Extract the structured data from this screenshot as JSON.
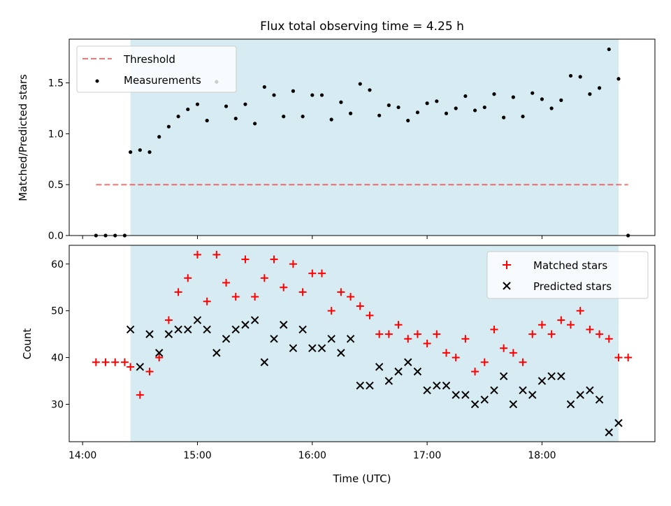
{
  "title": "Flux total observing time = 4.25 h",
  "xlabel": "Time (UTC)",
  "x_ticks": [
    "14:00",
    "15:00",
    "16:00",
    "17:00",
    "18:00"
  ],
  "colors": {
    "span": "#add8e6",
    "threshold": "#ff0000",
    "matched": "#ff0000",
    "predicted": "#000000",
    "measurements": "#000000"
  },
  "chart_data": [
    {
      "type": "scatter",
      "ylabel": "Matched/Predicted stars",
      "ylim": [
        0,
        1.93
      ],
      "y_ticks": [
        "0.0",
        "0.5",
        "1.0",
        "1.5"
      ],
      "shaded_span": [
        "14:25",
        "18:40"
      ],
      "legend": {
        "placement": "top-left",
        "threshold_label": "Threshold",
        "measurements_label": "Measurements"
      },
      "threshold": {
        "name": "Threshold",
        "y": 0.5,
        "x_range": [
          "14:07",
          "18:45"
        ],
        "style": "dashed"
      },
      "series": [
        {
          "name": "Measurements",
          "x": [
            "14:07",
            "14:12",
            "14:17",
            "14:22",
            "14:25",
            "14:30",
            "14:35",
            "14:40",
            "14:45",
            "14:50",
            "14:55",
            "15:00",
            "15:05",
            "15:10",
            "15:15",
            "15:20",
            "15:25",
            "15:30",
            "15:35",
            "15:40",
            "15:45",
            "15:50",
            "15:55",
            "16:00",
            "16:05",
            "16:10",
            "16:15",
            "16:20",
            "16:25",
            "16:30",
            "16:35",
            "16:40",
            "16:45",
            "16:50",
            "16:55",
            "17:00",
            "17:05",
            "17:10",
            "17:15",
            "17:20",
            "17:25",
            "17:30",
            "17:35",
            "17:40",
            "17:45",
            "17:50",
            "17:55",
            "18:00",
            "18:05",
            "18:10",
            "18:15",
            "18:20",
            "18:25",
            "18:30",
            "18:35",
            "18:40",
            "18:45"
          ],
          "y": [
            0,
            0,
            0,
            0,
            0.82,
            0.84,
            0.82,
            0.97,
            1.07,
            1.17,
            1.24,
            1.29,
            1.13,
            1.51,
            1.27,
            1.15,
            1.29,
            1.1,
            1.46,
            1.38,
            1.17,
            1.42,
            1.17,
            1.38,
            1.38,
            1.14,
            1.31,
            1.2,
            1.49,
            1.43,
            1.18,
            1.28,
            1.26,
            1.13,
            1.21,
            1.3,
            1.32,
            1.2,
            1.25,
            1.37,
            1.23,
            1.26,
            1.39,
            1.16,
            1.36,
            1.17,
            1.4,
            1.34,
            1.25,
            1.33,
            1.57,
            1.56,
            1.39,
            1.45,
            1.83,
            1.54,
            0
          ]
        }
      ]
    },
    {
      "type": "scatter",
      "ylabel": "Count",
      "ylim": [
        22,
        64
      ],
      "y_ticks": [
        "30",
        "40",
        "50",
        "60"
      ],
      "shaded_span": [
        "14:25",
        "18:40"
      ],
      "legend": {
        "placement": "top-right",
        "matched_label": "Matched stars",
        "predicted_label": "Predicted stars"
      },
      "series": [
        {
          "name": "Matched stars",
          "marker": "plus",
          "x": [
            "14:07",
            "14:12",
            "14:17",
            "14:22",
            "14:25",
            "14:30",
            "14:35",
            "14:40",
            "14:45",
            "14:50",
            "14:55",
            "15:00",
            "15:05",
            "15:10",
            "15:15",
            "15:20",
            "15:25",
            "15:30",
            "15:35",
            "15:40",
            "15:45",
            "15:50",
            "15:55",
            "16:00",
            "16:05",
            "16:10",
            "16:15",
            "16:20",
            "16:25",
            "16:30",
            "16:35",
            "16:40",
            "16:45",
            "16:50",
            "16:55",
            "17:00",
            "17:05",
            "17:10",
            "17:15",
            "17:20",
            "17:25",
            "17:30",
            "17:35",
            "17:40",
            "17:45",
            "17:50",
            "17:55",
            "18:00",
            "18:05",
            "18:10",
            "18:15",
            "18:20",
            "18:25",
            "18:30",
            "18:35",
            "18:40",
            "18:45"
          ],
          "y": [
            39,
            39,
            39,
            39,
            38,
            32,
            37,
            40,
            48,
            54,
            57,
            62,
            52,
            62,
            56,
            53,
            61,
            53,
            57,
            61,
            55,
            60,
            54,
            58,
            58,
            50,
            54,
            53,
            51,
            49,
            45,
            45,
            47,
            44,
            45,
            43,
            45,
            41,
            40,
            44,
            37,
            39,
            46,
            42,
            41,
            39,
            45,
            47,
            45,
            48,
            47,
            50,
            46,
            45,
            44,
            40,
            40
          ]
        },
        {
          "name": "Predicted stars",
          "marker": "x",
          "x": [
            "14:25",
            "14:30",
            "14:35",
            "14:40",
            "14:45",
            "14:50",
            "14:55",
            "15:00",
            "15:05",
            "15:10",
            "15:15",
            "15:20",
            "15:25",
            "15:30",
            "15:35",
            "15:40",
            "15:45",
            "15:50",
            "15:55",
            "16:00",
            "16:05",
            "16:10",
            "16:15",
            "16:20",
            "16:25",
            "16:30",
            "16:35",
            "16:40",
            "16:45",
            "16:50",
            "16:55",
            "17:00",
            "17:05",
            "17:10",
            "17:15",
            "17:20",
            "17:25",
            "17:30",
            "17:35",
            "17:40",
            "17:45",
            "17:50",
            "17:55",
            "18:00",
            "18:05",
            "18:10",
            "18:15",
            "18:20",
            "18:25",
            "18:30",
            "18:35",
            "18:40"
          ],
          "y": [
            46,
            38,
            45,
            41,
            45,
            46,
            46,
            48,
            46,
            41,
            44,
            46,
            47,
            48,
            39,
            44,
            47,
            42,
            46,
            42,
            42,
            44,
            41,
            44,
            34,
            34,
            38,
            35,
            37,
            39,
            37,
            33,
            34,
            34,
            32,
            32,
            30,
            31,
            33,
            36,
            30,
            33,
            32,
            35,
            36,
            36,
            30,
            32,
            33,
            31,
            24,
            26
          ]
        }
      ]
    }
  ]
}
